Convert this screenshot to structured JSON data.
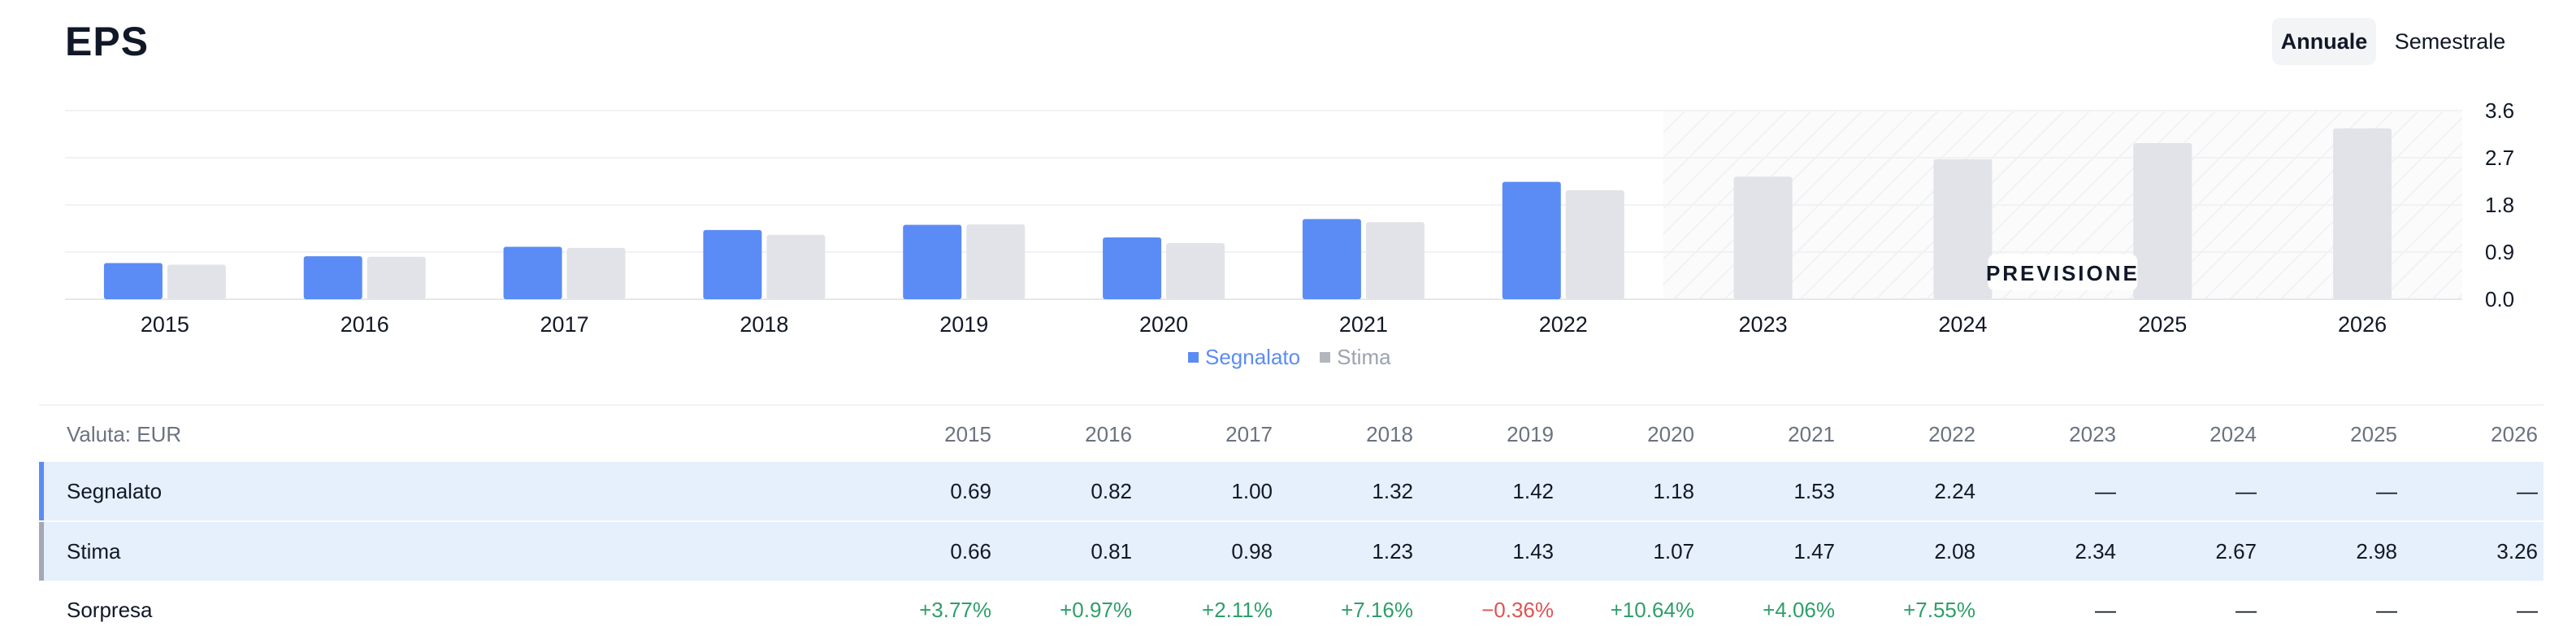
{
  "header": {
    "title": "EPS",
    "tabs": [
      {
        "label": "Annuale",
        "active": true
      },
      {
        "label": "Semestrale",
        "active": false
      }
    ]
  },
  "chart_data": {
    "type": "bar",
    "categories": [
      "2015",
      "2016",
      "2017",
      "2018",
      "2019",
      "2020",
      "2021",
      "2022",
      "2023",
      "2024",
      "2025",
      "2026"
    ],
    "series": [
      {
        "name": "Segnalato",
        "color": "#5b8cf5",
        "values": [
          0.69,
          0.82,
          1.0,
          1.32,
          1.42,
          1.18,
          1.53,
          2.24,
          null,
          null,
          null,
          null
        ]
      },
      {
        "name": "Stima",
        "color": "#e1e3e8",
        "values": [
          0.66,
          0.81,
          0.98,
          1.23,
          1.43,
          1.07,
          1.47,
          2.08,
          2.34,
          2.67,
          2.98,
          3.26
        ]
      }
    ],
    "yticks": [
      "3.6",
      "2.7",
      "1.8",
      "0.9",
      "0.0"
    ],
    "ylim": [
      0,
      3.6
    ],
    "forecast_start_index": 8,
    "forecast_label": "PREVISIONE",
    "legend_position": "bottom-center",
    "grid": true
  },
  "table": {
    "currency_label": "Valuta: EUR",
    "years": [
      "2015",
      "2016",
      "2017",
      "2018",
      "2019",
      "2020",
      "2021",
      "2022",
      "2023",
      "2024",
      "2025",
      "2026"
    ],
    "rows": [
      {
        "label": "Segnalato",
        "values": [
          "0.69",
          "0.82",
          "1.00",
          "1.32",
          "1.42",
          "1.18",
          "1.53",
          "2.24",
          "—",
          "—",
          "—",
          "—"
        ]
      },
      {
        "label": "Stima",
        "values": [
          "0.66",
          "0.81",
          "0.98",
          "1.23",
          "1.43",
          "1.07",
          "1.47",
          "2.08",
          "2.34",
          "2.67",
          "2.98",
          "3.26"
        ]
      },
      {
        "label": "Sorpresa",
        "values": [
          "+3.77%",
          "+0.97%",
          "+2.11%",
          "+7.16%",
          "−0.36%",
          "+10.64%",
          "+4.06%",
          "+7.55%",
          "—",
          "—",
          "—",
          "—"
        ]
      }
    ]
  }
}
